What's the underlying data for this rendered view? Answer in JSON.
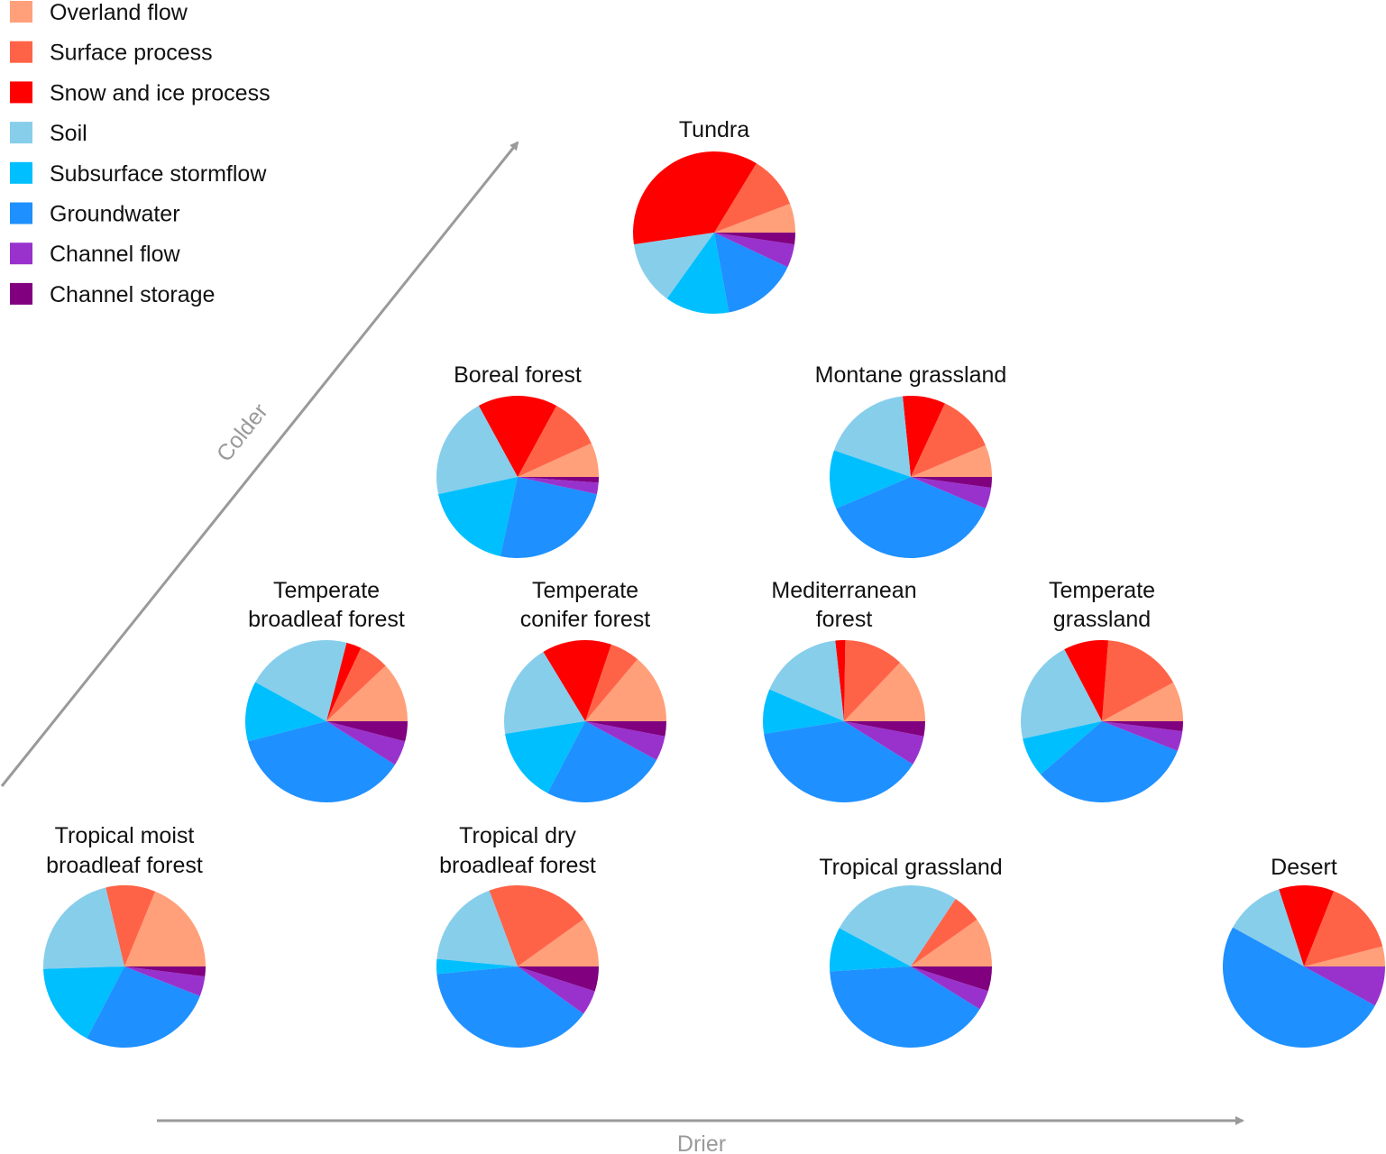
{
  "chart_data": {
    "type": "pie",
    "title": "",
    "axes": {
      "colder": "Colder",
      "drier": "Drier"
    },
    "categories": [
      {
        "name": "Overland flow",
        "color": "#FFA07A"
      },
      {
        "name": "Surface process",
        "color": "#FF6347"
      },
      {
        "name": "Snow and ice process",
        "color": "#FF0000"
      },
      {
        "name": "Soil",
        "color": "#87CEEB"
      },
      {
        "name": "Subsurface stormflow",
        "color": "#00BFFF"
      },
      {
        "name": "Groundwater",
        "color": "#1E90FF"
      },
      {
        "name": "Channel flow",
        "color": "#9932CC"
      },
      {
        "name": "Channel storage",
        "color": "#800080"
      }
    ],
    "biomes": [
      {
        "name": "Tundra",
        "lines": [
          "Tundra"
        ],
        "values": [
          5,
          9,
          31,
          11,
          11,
          13,
          4,
          2
        ]
      },
      {
        "name": "Boreal forest",
        "lines": [
          "Boreal forest"
        ],
        "values": [
          6,
          9,
          14,
          18,
          16,
          22,
          2,
          1
        ]
      },
      {
        "name": "Montane grassland",
        "lines": [
          "Montane grassland"
        ],
        "values": [
          6,
          11,
          8,
          17,
          11,
          35,
          4,
          2
        ]
      },
      {
        "name": "Temperate broadleaf forest",
        "lines": [
          "Temperate",
          "broadleaf forest"
        ],
        "values": [
          12,
          6,
          3,
          21,
          12,
          37,
          5,
          4
        ]
      },
      {
        "name": "Temperate conifer forest",
        "lines": [
          "Temperate",
          "conifer forest"
        ],
        "values": [
          14,
          6,
          14,
          19,
          15,
          25,
          5,
          3
        ]
      },
      {
        "name": "Mediterranean forest",
        "lines": [
          "Mediterranean",
          "forest"
        ],
        "values": [
          13,
          12,
          2,
          17,
          9,
          39,
          6,
          3
        ]
      },
      {
        "name": "Temperate grassland",
        "lines": [
          "Temperate",
          "grassland"
        ],
        "values": [
          8,
          16,
          9,
          21,
          8,
          33,
          4,
          2
        ]
      },
      {
        "name": "Tropical moist broadleaf forest",
        "lines": [
          "Tropical moist",
          "broadleaf forest"
        ],
        "values": [
          19,
          10,
          0,
          22,
          17,
          27,
          4,
          2
        ]
      },
      {
        "name": "Tropical dry broadleaf forest",
        "lines": [
          "Tropical dry",
          "broadleaf forest"
        ],
        "values": [
          10,
          21,
          0,
          18,
          3,
          39,
          5,
          5
        ]
      },
      {
        "name": "Tropical grassland",
        "lines": [
          "Tropical grassland"
        ],
        "values": [
          10,
          6,
          0,
          27,
          9,
          41,
          4,
          5
        ]
      },
      {
        "name": "Desert",
        "lines": [
          "Desert"
        ],
        "values": [
          4,
          15,
          11,
          12,
          0,
          50,
          8,
          0
        ]
      }
    ]
  }
}
